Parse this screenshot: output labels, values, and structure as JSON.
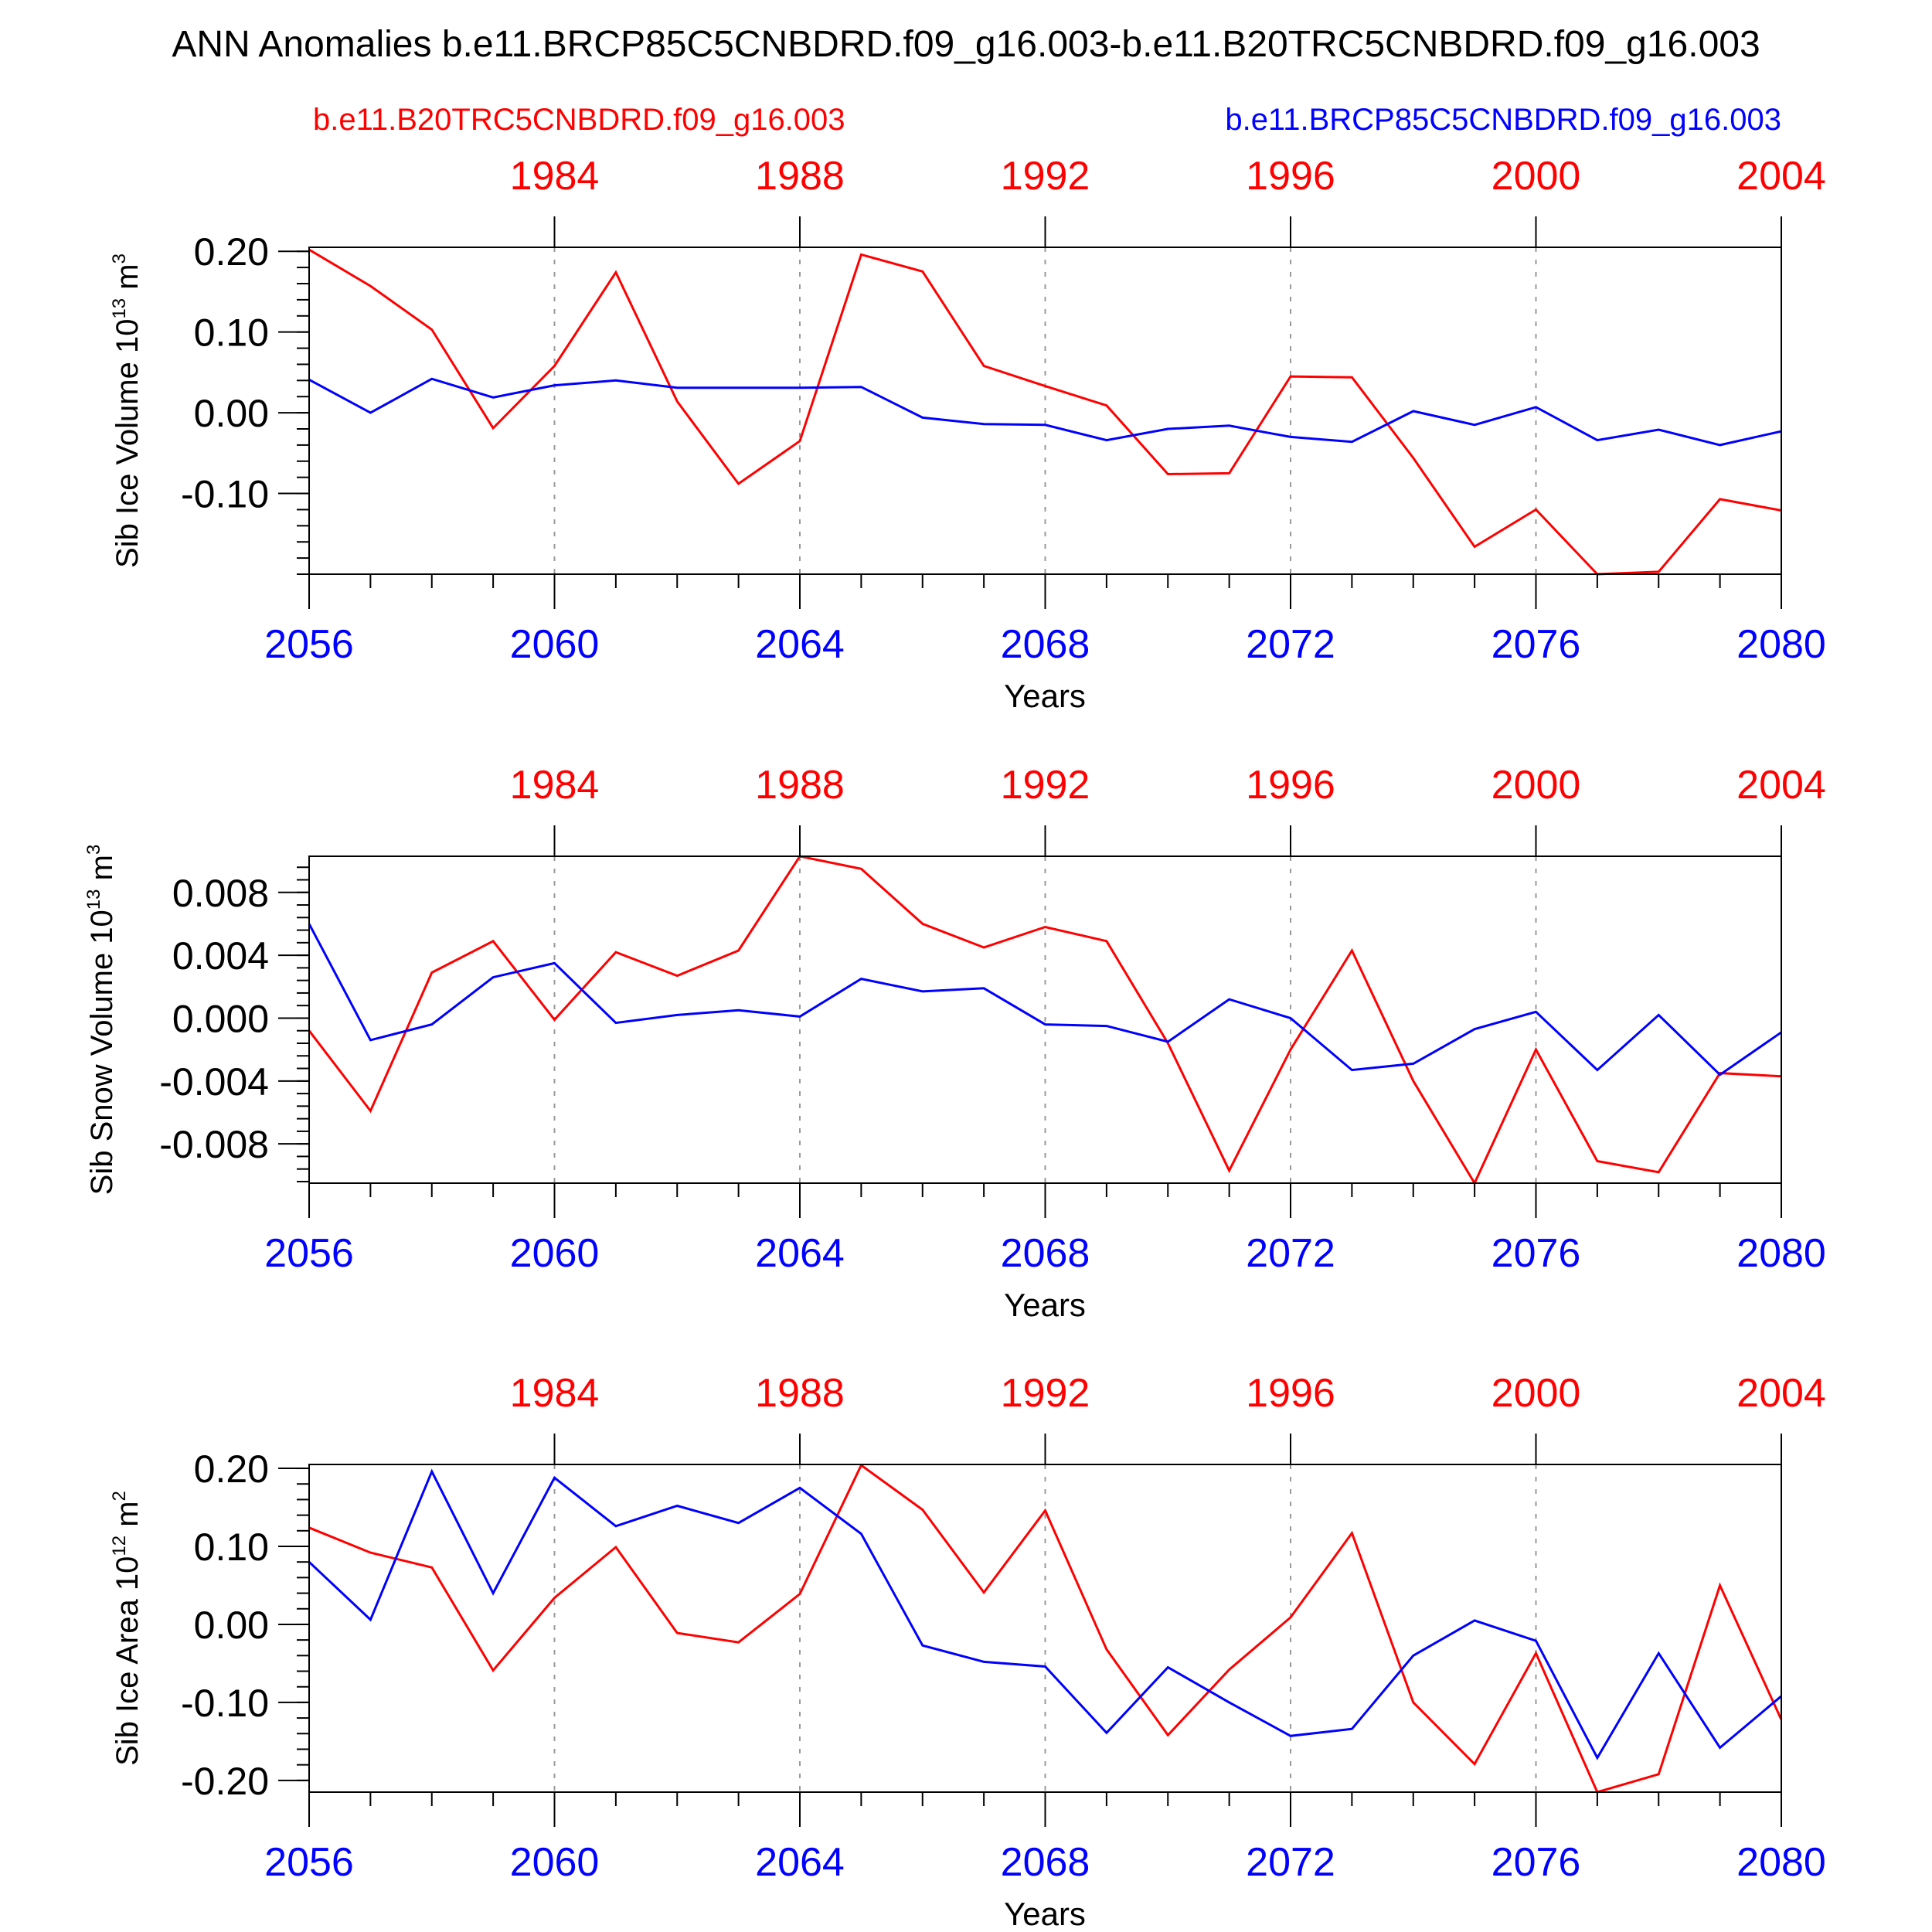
{
  "title": "ANN Anomalies b.e11.BRCP85C5CNBDRD.f09_g16.003-b.e11.B20TRC5CNBDRD.f09_g16.003",
  "legend": {
    "left": "b.e11.B20TRC5CNBDRD.f09_g16.003",
    "right": "b.e11.BRCP85C5CNBDRD.f09_g16.003"
  },
  "colors": {
    "red_series": "#ff0000",
    "blue_series": "#0000ff"
  },
  "chart_data": [
    {
      "type": "line",
      "ylabel_main": "Sib Ice Volume 10",
      "ylabel_exp": "13",
      "ylabel_unit": " m",
      "ylabel_unit_exp": "3",
      "xlabel": "Years",
      "ylim": [
        -0.2,
        0.205
      ],
      "yticks": [
        0.2,
        0.1,
        0.0,
        -0.1
      ],
      "ytick_labels": [
        "0.20",
        "0.10",
        "0.00",
        "-0.10"
      ],
      "x_bottom": [
        2056,
        2057,
        2058,
        2059,
        2060,
        2061,
        2062,
        2063,
        2064,
        2065,
        2066,
        2067,
        2068,
        2069,
        2070,
        2071,
        2072,
        2073,
        2074,
        2075,
        2076,
        2077,
        2078,
        2079,
        2080
      ],
      "x_bottom_ticks": [
        "2056",
        "2060",
        "2064",
        "2068",
        "2072",
        "2076",
        "2080"
      ],
      "x_top_ticks": [
        "1984",
        "1988",
        "1992",
        "1996",
        "2000",
        "2004"
      ],
      "series": [
        {
          "color": "red",
          "values": [
            0.202,
            0.157,
            0.103,
            -0.019,
            0.058,
            0.174,
            0.014,
            -0.088,
            -0.035,
            0.196,
            0.175,
            0.058,
            0.033,
            0.009,
            -0.076,
            -0.075,
            0.045,
            0.044,
            -0.056,
            -0.166,
            -0.12,
            -0.2,
            -0.197,
            -0.107,
            -0.121
          ]
        },
        {
          "color": "blue",
          "values": [
            0.041,
            0.0,
            0.042,
            0.019,
            0.034,
            0.04,
            0.031,
            0.031,
            0.031,
            0.032,
            -0.006,
            -0.014,
            -0.015,
            -0.034,
            -0.02,
            -0.016,
            -0.03,
            -0.036,
            0.002,
            -0.015,
            0.007,
            -0.034,
            -0.021,
            -0.04,
            -0.023
          ]
        }
      ]
    },
    {
      "type": "line",
      "ylabel_main": "Sib Snow Volume 10",
      "ylabel_exp": "13",
      "ylabel_unit": " m",
      "ylabel_unit_exp": "3",
      "xlabel": "Years",
      "ylim": [
        -0.0105,
        0.0103
      ],
      "yticks": [
        0.008,
        0.004,
        0.0,
        -0.004,
        -0.008
      ],
      "ytick_labels": [
        "0.008",
        "0.004",
        "0.000",
        "-0.004",
        "-0.008"
      ],
      "x_bottom": [
        2056,
        2057,
        2058,
        2059,
        2060,
        2061,
        2062,
        2063,
        2064,
        2065,
        2066,
        2067,
        2068,
        2069,
        2070,
        2071,
        2072,
        2073,
        2074,
        2075,
        2076,
        2077,
        2078,
        2079,
        2080
      ],
      "x_bottom_ticks": [
        "2056",
        "2060",
        "2064",
        "2068",
        "2072",
        "2076",
        "2080"
      ],
      "x_top_ticks": [
        "1984",
        "1988",
        "1992",
        "1996",
        "2000",
        "2004"
      ],
      "series": [
        {
          "color": "red",
          "values": [
            -0.0008,
            -0.0059,
            0.0029,
            0.0049,
            -0.0001,
            0.0042,
            0.0027,
            0.0043,
            0.0103,
            0.0095,
            0.006,
            0.0045,
            0.0058,
            0.0049,
            -0.0016,
            -0.0097,
            -0.002,
            0.0043,
            -0.004,
            -0.0105,
            -0.002,
            -0.0091,
            -0.0098,
            -0.0035,
            -0.0037
          ]
        },
        {
          "color": "blue",
          "values": [
            0.006,
            -0.0014,
            -0.0004,
            0.0026,
            0.0035,
            -0.0003,
            0.0002,
            0.0005,
            0.0001,
            0.0025,
            0.0017,
            0.0019,
            -0.0004,
            -0.0005,
            -0.0015,
            0.0012,
            0.0,
            -0.0033,
            -0.0029,
            -0.0007,
            0.0004,
            -0.0033,
            0.0002,
            -0.0036,
            -0.0009
          ]
        }
      ]
    },
    {
      "type": "line",
      "ylabel_main": "Sib Ice Area 10",
      "ylabel_exp": "12",
      "ylabel_unit": " m",
      "ylabel_unit_exp": "2",
      "xlabel": "Years",
      "ylim": [
        -0.215,
        0.205
      ],
      "yticks": [
        0.2,
        0.1,
        0.0,
        -0.1,
        -0.2
      ],
      "ytick_labels": [
        "0.20",
        "0.10",
        "0.00",
        "-0.10",
        "-0.20"
      ],
      "x_bottom": [
        2056,
        2057,
        2058,
        2059,
        2060,
        2061,
        2062,
        2063,
        2064,
        2065,
        2066,
        2067,
        2068,
        2069,
        2070,
        2071,
        2072,
        2073,
        2074,
        2075,
        2076,
        2077,
        2078,
        2079,
        2080
      ],
      "x_bottom_ticks": [
        "2056",
        "2060",
        "2064",
        "2068",
        "2072",
        "2076",
        "2080"
      ],
      "x_top_ticks": [
        "1984",
        "1988",
        "1992",
        "1996",
        "2000",
        "2004"
      ],
      "series": [
        {
          "color": "red",
          "values": [
            0.124,
            0.092,
            0.073,
            -0.059,
            0.034,
            0.099,
            -0.011,
            -0.023,
            0.039,
            0.204,
            0.147,
            0.041,
            0.146,
            -0.032,
            -0.142,
            -0.058,
            0.009,
            0.117,
            -0.1,
            -0.179,
            -0.037,
            -0.215,
            -0.192,
            0.05,
            -0.122
          ]
        },
        {
          "color": "blue",
          "values": [
            0.08,
            0.006,
            0.196,
            0.04,
            0.188,
            0.126,
            0.152,
            0.13,
            0.175,
            0.116,
            -0.027,
            -0.048,
            -0.054,
            -0.139,
            -0.055,
            -0.1,
            -0.143,
            -0.134,
            -0.04,
            0.005,
            -0.021,
            -0.171,
            -0.037,
            -0.158,
            -0.092
          ]
        }
      ]
    }
  ]
}
